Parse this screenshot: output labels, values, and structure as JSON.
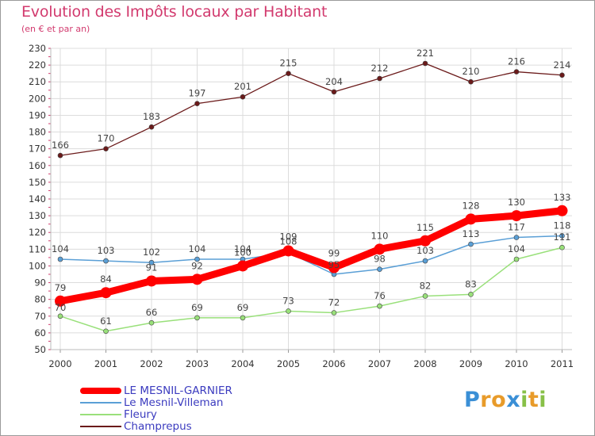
{
  "title": "Evolution des Impôts locaux par Habitant",
  "subtitle": "(en € et par an)",
  "chart_data": {
    "type": "line",
    "title": "Evolution des Impôts locaux par Habitant",
    "subtitle": "(en € et par an)",
    "x": [
      "2000",
      "2001",
      "2002",
      "2003",
      "2004",
      "2005",
      "2006",
      "2007",
      "2008",
      "2009",
      "2010",
      "2011"
    ],
    "ylim": [
      50,
      230
    ],
    "yticks": [
      50,
      60,
      70,
      80,
      90,
      100,
      110,
      120,
      130,
      140,
      150,
      160,
      170,
      180,
      190,
      200,
      210,
      220,
      230
    ],
    "grid": true,
    "legend_position": "bottom-left",
    "series": [
      {
        "name": "Champrepus",
        "color": "#6b1a1a",
        "values": [
          166,
          170,
          183,
          197,
          201,
          215,
          204,
          212,
          221,
          210,
          216,
          214
        ]
      },
      {
        "name": "Fleury",
        "color": "#99e07a",
        "values": [
          70,
          61,
          66,
          69,
          69,
          73,
          72,
          76,
          82,
          83,
          104,
          111
        ]
      },
      {
        "name": "Le Mesnil-Villeman",
        "color": "#5a9fd6",
        "values": [
          104,
          103,
          102,
          104,
          104,
          108,
          95,
          98,
          103,
          113,
          117,
          118
        ]
      },
      {
        "name": "LE MESNIL-GARNIER",
        "color": "#ff0000",
        "values": [
          79,
          84,
          91,
          92,
          100,
          109,
          99,
          110,
          115,
          128,
          130,
          133
        ]
      }
    ],
    "labels": {
      "Champrepus": [
        "166",
        "170",
        "183",
        "197",
        "201",
        "215",
        "204",
        "212",
        "221",
        "210",
        "216",
        "214"
      ],
      "Fleury": [
        "70",
        "61",
        "66",
        "69",
        "69",
        "73",
        "72",
        "76",
        "82",
        "83",
        "104",
        "111"
      ],
      "Le Mesnil-Villeman": [
        "104",
        "103",
        "102",
        "104",
        "104",
        "108",
        "95",
        "98",
        "103",
        "113",
        "117",
        "118"
      ],
      "LE MESNIL-GARNIER": [
        "79",
        "84",
        "91",
        "92",
        "100",
        "109",
        "99",
        "110",
        "115",
        "128",
        "130",
        "133"
      ]
    }
  },
  "legend": [
    {
      "label": "LE MESNIL-GARNIER",
      "color": "#ff0000"
    },
    {
      "label": "Le Mesnil-Villeman",
      "color": "#5a9fd6"
    },
    {
      "label": "Fleury",
      "color": "#99e07a"
    },
    {
      "label": "Champrepus",
      "color": "#6b1a1a"
    }
  ],
  "logo": {
    "text": "Proxiti",
    "letter_colors": [
      "#3a8fd6",
      "#e89b2a",
      "#e89b2a",
      "#3a8fd6",
      "#88c048",
      "#e89b2a",
      "#88c048"
    ]
  }
}
